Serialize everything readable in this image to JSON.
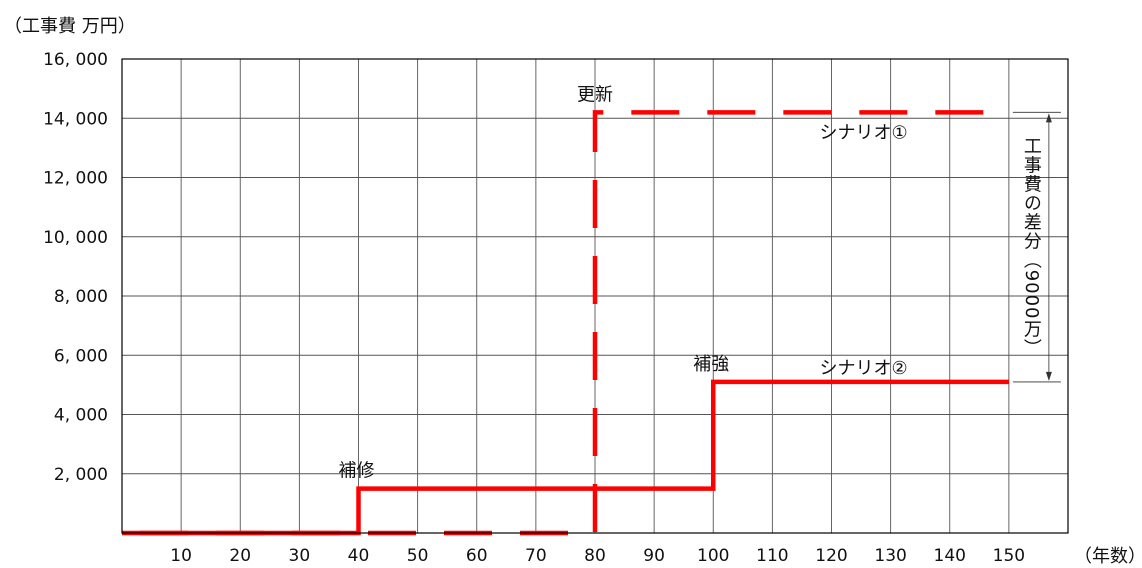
{
  "chart_data": {
    "type": "line",
    "ylabel": "（工事費 万円）",
    "xlabel": "（年数）",
    "xlim": [
      0,
      160
    ],
    "ylim": [
      0,
      16000
    ],
    "x_ticks": [
      10,
      20,
      30,
      40,
      50,
      60,
      70,
      80,
      90,
      100,
      110,
      120,
      130,
      140,
      150
    ],
    "y_ticks": [
      2000,
      4000,
      6000,
      8000,
      10000,
      12000,
      14000,
      16000
    ],
    "y_tick_labels": [
      "2, 000",
      "4, 000",
      "6, 000",
      "8, 000",
      "10, 000",
      "12, 000",
      "14, 000",
      "16, 000"
    ],
    "grid": true,
    "series": [
      {
        "name": "シナリオ①",
        "style": "dashed",
        "color": "#ff0000",
        "x": [
          0,
          80,
          80,
          150
        ],
        "y": [
          0,
          0,
          14200,
          14200
        ]
      },
      {
        "name": "シナリオ②",
        "style": "solid",
        "color": "#ff0000",
        "x": [
          0,
          40,
          40,
          100,
          100,
          150
        ],
        "y": [
          0,
          0,
          1500,
          1500,
          5100,
          5100
        ]
      }
    ],
    "annotations": [
      {
        "text": "補修",
        "x": 40,
        "y": 1500
      },
      {
        "text": "更新",
        "x": 80,
        "y": 14200
      },
      {
        "text": "補強",
        "x": 100,
        "y": 5100
      }
    ],
    "difference": {
      "label": "工事費の差分（9000万）",
      "x": 150,
      "y_from": 5100,
      "y_to": 14200
    }
  }
}
